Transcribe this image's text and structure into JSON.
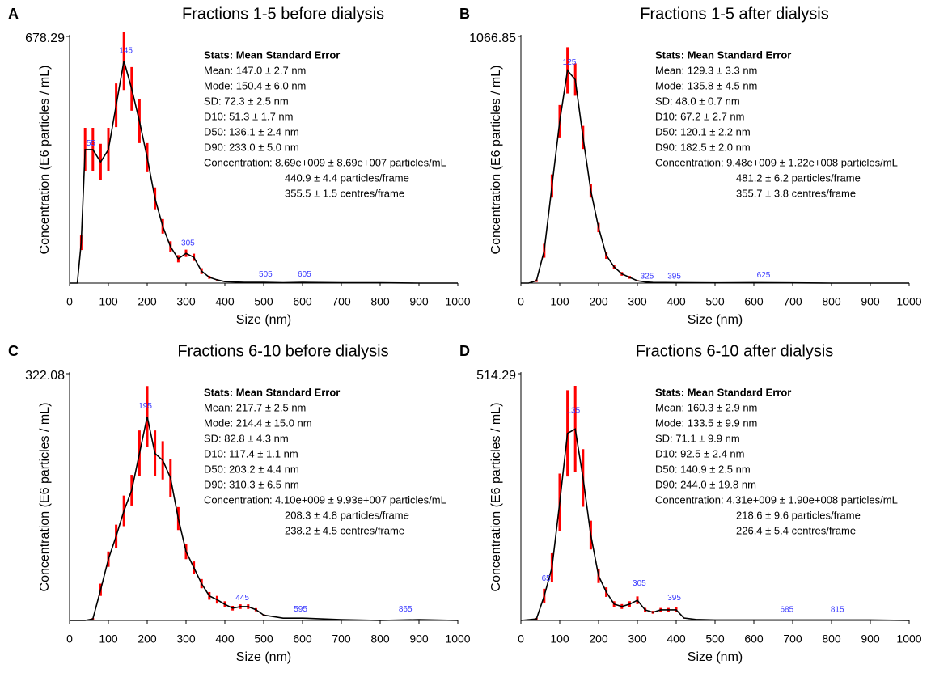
{
  "chart_data": [
    {
      "type": "line",
      "label": "A",
      "title": "Fractions 1-5 before dialysis",
      "x_label": "Size (nm)",
      "y_label": "Concentration (E6 particles / mL)",
      "x": [
        0,
        20,
        30,
        40,
        60,
        80,
        100,
        120,
        140,
        160,
        180,
        200,
        220,
        240,
        260,
        280,
        300,
        320,
        340,
        360,
        380,
        400,
        450,
        500,
        550,
        600,
        700,
        800,
        900,
        1000
      ],
      "series": [
        {
          "color": "#000000",
          "error_color": "#ff0000",
          "values": [
            0,
            0,
            111,
            367,
            367,
            333,
            367,
            489,
            611,
            534,
            445,
            345,
            233,
            156,
            100,
            67,
            82,
            71,
            33,
            16,
            9,
            4,
            2,
            2,
            1,
            2,
            1,
            1,
            0,
            0
          ],
          "errors": [
            0,
            0,
            20,
            60,
            60,
            50,
            60,
            60,
            80,
            60,
            60,
            40,
            30,
            20,
            15,
            10,
            10,
            10,
            8,
            4,
            2,
            1,
            0,
            0,
            0,
            0,
            0,
            0,
            0,
            0
          ]
        }
      ],
      "annotations": [
        {
          "x": 145,
          "y": 630,
          "text": "145"
        },
        {
          "x": 55,
          "y": 375,
          "text": "55"
        },
        {
          "x": 305,
          "y": 100,
          "text": "305"
        },
        {
          "x": 505,
          "y": 15,
          "text": "505"
        },
        {
          "x": 605,
          "y": 15,
          "text": "605"
        }
      ],
      "stats_title": "Stats: Mean Standard Error",
      "stats": [
        "Mean: 147.0 ± 2.7 nm",
        "Mode: 150.4 ± 6.0 nm",
        "SD: 72.3 ± 2.5 nm",
        "D10: 51.3 ± 1.7 nm",
        "D50: 136.1 ± 2.4 nm",
        "D90: 233.0 ± 5.0 nm",
        "Concentration: 8.69e+009 ± 8.69e+007 particles/mL",
        "440.9 ± 4.4 particles/frame",
        "355.5 ± 1.5 centres/frame"
      ],
      "xlim": [
        0,
        1000
      ],
      "xticks": [
        0,
        100,
        200,
        300,
        400,
        500,
        600,
        700,
        800,
        900,
        1000
      ],
      "ylim": [
        0,
        678.29
      ],
      "yticks": [
        678.29
      ]
    },
    {
      "type": "line",
      "label": "B",
      "title": "Fractions 1-5 after dialysis",
      "x_label": "Size (nm)",
      "y_label": "Concentration (E6 particles / mL)",
      "x": [
        0,
        20,
        40,
        60,
        80,
        100,
        120,
        140,
        160,
        180,
        200,
        220,
        240,
        260,
        280,
        300,
        320,
        340,
        400,
        500,
        600,
        700,
        800,
        900,
        1000
      ],
      "series": [
        {
          "color": "#000000",
          "error_color": "#ff0000",
          "values": [
            0,
            0,
            10,
            140,
            420,
            700,
            920,
            880,
            630,
            400,
            240,
            120,
            70,
            40,
            25,
            10,
            5,
            3,
            2,
            1,
            2,
            1,
            0,
            0,
            0
          ],
          "errors": [
            0,
            0,
            5,
            30,
            50,
            70,
            100,
            70,
            50,
            30,
            20,
            15,
            10,
            8,
            6,
            3,
            0,
            0,
            0,
            0,
            0,
            0,
            0,
            0,
            0
          ]
        }
      ],
      "annotations": [
        {
          "x": 125,
          "y": 940,
          "text": "125"
        },
        {
          "x": 325,
          "y": 15,
          "text": "325"
        },
        {
          "x": 395,
          "y": 15,
          "text": "395"
        },
        {
          "x": 625,
          "y": 20,
          "text": "625"
        }
      ],
      "stats_title": "Stats: Mean Standard Error",
      "stats": [
        "Mean: 129.3 ± 3.3 nm",
        "Mode: 135.8 ± 4.5 nm",
        "SD: 48.0 ± 0.7 nm",
        "D10: 67.2 ± 2.7 nm",
        "D50: 120.1 ± 2.2 nm",
        "D90: 182.5 ± 2.0 nm",
        "Concentration: 9.48e+009 ± 1.22e+008 particles/mL",
        "481.2 ± 6.2 particles/frame",
        "355.7 ± 3.8 centres/frame"
      ],
      "xlim": [
        0,
        1000
      ],
      "xticks": [
        0,
        100,
        200,
        300,
        400,
        500,
        600,
        700,
        800,
        900,
        1000
      ],
      "ylim": [
        0,
        1066.85
      ],
      "yticks": [
        1066.85
      ]
    },
    {
      "type": "line",
      "label": "C",
      "title": "Fractions 6-10 before dialysis",
      "x_label": "Size (nm)",
      "y_label": "Concentration (E6 particles / mL)",
      "x": [
        0,
        40,
        60,
        80,
        100,
        120,
        140,
        160,
        180,
        200,
        220,
        240,
        260,
        280,
        300,
        320,
        340,
        360,
        380,
        400,
        420,
        440,
        460,
        480,
        500,
        550,
        600,
        700,
        800,
        900,
        1000
      ],
      "series": [
        {
          "color": "#000000",
          "error_color": "#ff0000",
          "values": [
            0,
            0,
            2,
            40,
            80,
            110,
            143,
            170,
            218,
            266,
            218,
            209,
            186,
            133,
            90,
            69,
            48,
            32,
            27,
            21,
            16,
            18,
            18,
            14,
            7,
            3,
            3,
            1,
            0,
            1,
            0
          ],
          "errors": [
            0,
            0,
            1,
            8,
            10,
            15,
            20,
            20,
            30,
            40,
            30,
            25,
            25,
            15,
            10,
            8,
            6,
            5,
            5,
            4,
            3,
            3,
            3,
            2,
            1,
            0,
            0,
            0,
            0,
            0,
            0
          ]
        }
      ],
      "annotations": [
        {
          "x": 195,
          "y": 275,
          "text": "195"
        },
        {
          "x": 445,
          "y": 25,
          "text": "445"
        },
        {
          "x": 595,
          "y": 10,
          "text": "595"
        },
        {
          "x": 865,
          "y": 10,
          "text": "865"
        }
      ],
      "stats_title": "Stats: Mean Standard Error",
      "stats": [
        "Mean: 217.7 ± 2.5 nm",
        "Mode: 214.4 ± 15.0 nm",
        "SD: 82.8 ± 4.3 nm",
        "D10: 117.4 ± 1.1 nm",
        "D50: 203.2 ± 4.4 nm",
        "D90: 310.3 ± 6.5 nm",
        "Concentration: 4.10e+009 ± 9.93e+007 particles/mL",
        "208.3 ± 4.8 particles/frame",
        "238.2 ± 4.5 centres/frame"
      ],
      "xlim": [
        0,
        1000
      ],
      "xticks": [
        0,
        100,
        200,
        300,
        400,
        500,
        600,
        700,
        800,
        900,
        1000
      ],
      "ylim": [
        0,
        322.08
      ],
      "yticks": [
        322.08
      ]
    },
    {
      "type": "line",
      "label": "D",
      "title": "Fractions 6-10 after dialysis",
      "x_label": "Size (nm)",
      "y_label": "Concentration (E6 particles / mL)",
      "x": [
        0,
        40,
        60,
        80,
        100,
        120,
        140,
        160,
        180,
        200,
        220,
        240,
        260,
        280,
        300,
        320,
        340,
        360,
        380,
        400,
        420,
        450,
        500,
        600,
        700,
        800,
        900,
        1000
      ],
      "series": [
        {
          "color": "#000000",
          "error_color": "#ff0000",
          "values": [
            0,
            3,
            51,
            110,
            246,
            390,
            399,
            297,
            178,
            93,
            59,
            34,
            29,
            34,
            42,
            22,
            17,
            22,
            22,
            22,
            5,
            2,
            1,
            1,
            1,
            1,
            1,
            0
          ],
          "errors": [
            0,
            2,
            15,
            30,
            60,
            90,
            90,
            60,
            30,
            15,
            10,
            6,
            5,
            6,
            8,
            4,
            3,
            4,
            4,
            5,
            1,
            0,
            0,
            0,
            0,
            0,
            0,
            0
          ]
        }
      ],
      "annotations": [
        {
          "x": 65,
          "y": 80,
          "text": "65"
        },
        {
          "x": 135,
          "y": 430,
          "text": "135"
        },
        {
          "x": 305,
          "y": 70,
          "text": "305"
        },
        {
          "x": 395,
          "y": 40,
          "text": "395"
        },
        {
          "x": 685,
          "y": 15,
          "text": "685"
        },
        {
          "x": 815,
          "y": 15,
          "text": "815"
        }
      ],
      "stats_title": "Stats: Mean Standard Error",
      "stats": [
        "Mean: 160.3 ± 2.9 nm",
        "Mode: 133.5 ± 9.9 nm",
        "SD: 71.1 ± 9.9 nm",
        "D10: 92.5 ± 2.4 nm",
        "D50: 140.9 ± 2.5 nm",
        "D90: 244.0 ± 19.8 nm",
        "Concentration: 4.31e+009 ± 1.90e+008 particles/mL",
        "218.6 ± 9.6 particles/frame",
        "226.4 ± 5.4 centres/frame"
      ],
      "xlim": [
        0,
        1000
      ],
      "xticks": [
        0,
        100,
        200,
        300,
        400,
        500,
        600,
        700,
        800,
        900,
        1000
      ],
      "ylim": [
        0,
        514.29
      ],
      "yticks": [
        514.29
      ]
    }
  ]
}
